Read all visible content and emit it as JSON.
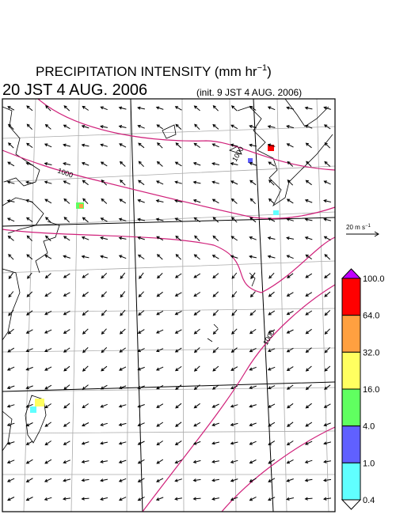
{
  "header": {
    "title": "PRECIPITATION INTENSITY (mm hr",
    "title_exponent": "−1",
    "title_end": ")",
    "valid_time": "20 JST 4 AUG. 2006",
    "init_time": "(init. 9 JST 4 AUG. 2006)"
  },
  "reference_vector": {
    "label": "20 m s",
    "exponent": "−1"
  },
  "colorbar": {
    "labels": [
      "100.0",
      "64.0",
      "32.0",
      "16.0",
      "4.0",
      "1.0",
      "0.4"
    ],
    "colors": [
      "#ff0000",
      "#ffa040",
      "#ffff60",
      "#60ff60",
      "#6060ff",
      "#60ffff"
    ],
    "over_color": "#c000ff",
    "under_color": "#ffffff"
  },
  "contour_labels": [
    "1000",
    "1000",
    "1000"
  ]
}
